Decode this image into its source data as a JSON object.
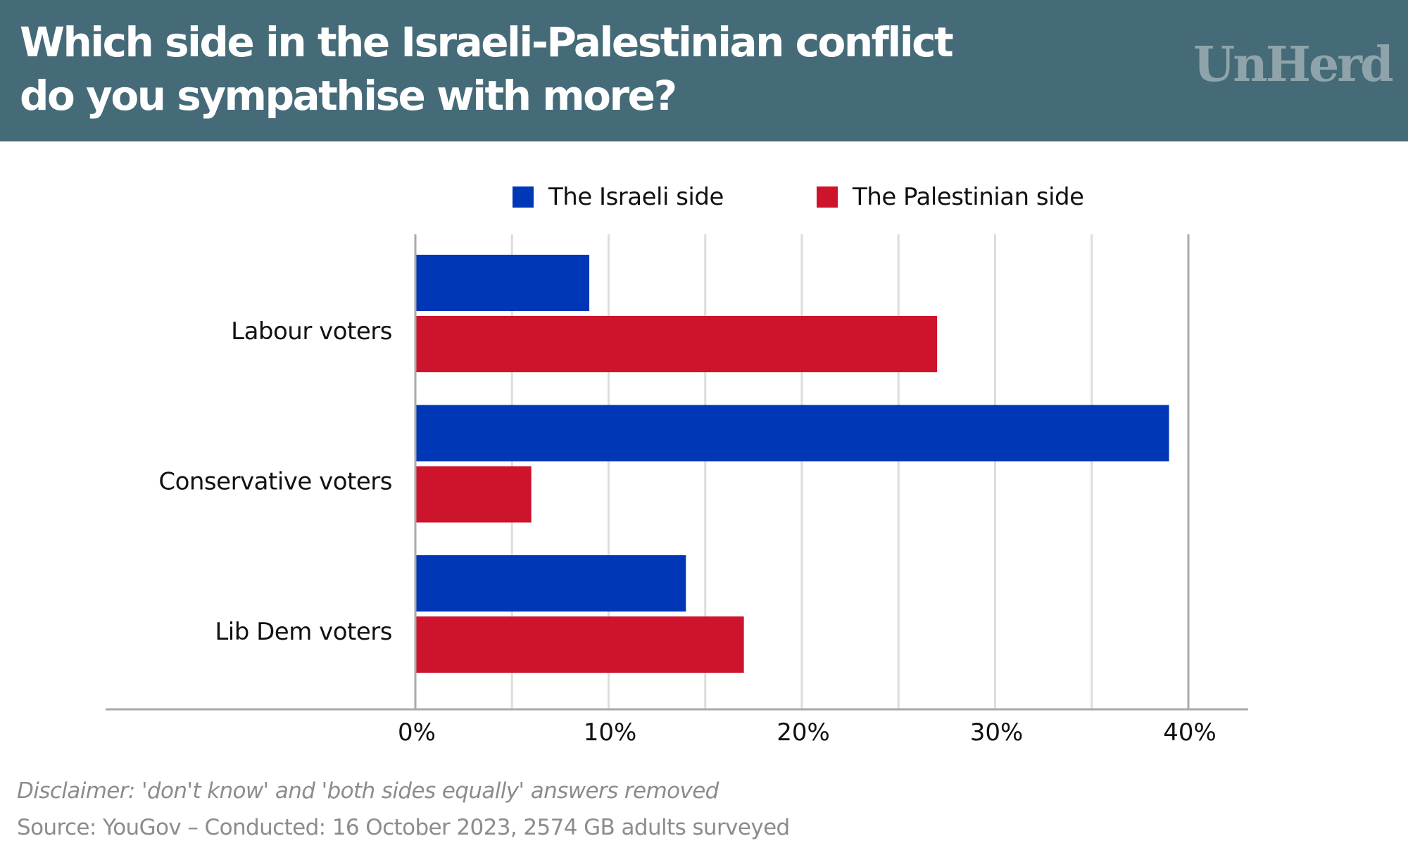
{
  "header": {
    "title_lines": [
      "Which side in the Israeli-Palestinian conflict",
      "do you sympathise with more?"
    ],
    "logo": "UnHerd",
    "background_color": "#456b78"
  },
  "legend": [
    {
      "label": "The Israeli side",
      "color": "#0037b6"
    },
    {
      "label": "The Palestinian side",
      "color": "#cd142c"
    }
  ],
  "footer": {
    "disclaimer": "Disclaimer: 'don't know' and 'both sides equally' answers removed",
    "source": "Source: YouGov – Conducted: 16 October 2023, 2574 GB adults surveyed"
  },
  "chart_data": {
    "type": "bar",
    "orientation": "horizontal",
    "title": "Which side in the Israeli-Palestinian conflict do you sympathise with more?",
    "xlabel": "",
    "ylabel": "",
    "categories": [
      "Labour voters",
      "Conservative voters",
      "Lib Dem voters"
    ],
    "series": [
      {
        "name": "The Israeli side",
        "color": "#0037b6",
        "values": [
          9,
          39,
          14
        ]
      },
      {
        "name": "The Palestinian side",
        "color": "#cd142c",
        "values": [
          27,
          6,
          17
        ]
      }
    ],
    "xlim": [
      0,
      40
    ],
    "x_ticks": [
      0,
      10,
      20,
      30,
      40
    ],
    "x_tick_labels": [
      "0%",
      "10%",
      "20%",
      "30%",
      "40%"
    ],
    "minor_gridlines_every": 5,
    "grid": true,
    "legend_position": "top-center",
    "value_unit": "%"
  }
}
